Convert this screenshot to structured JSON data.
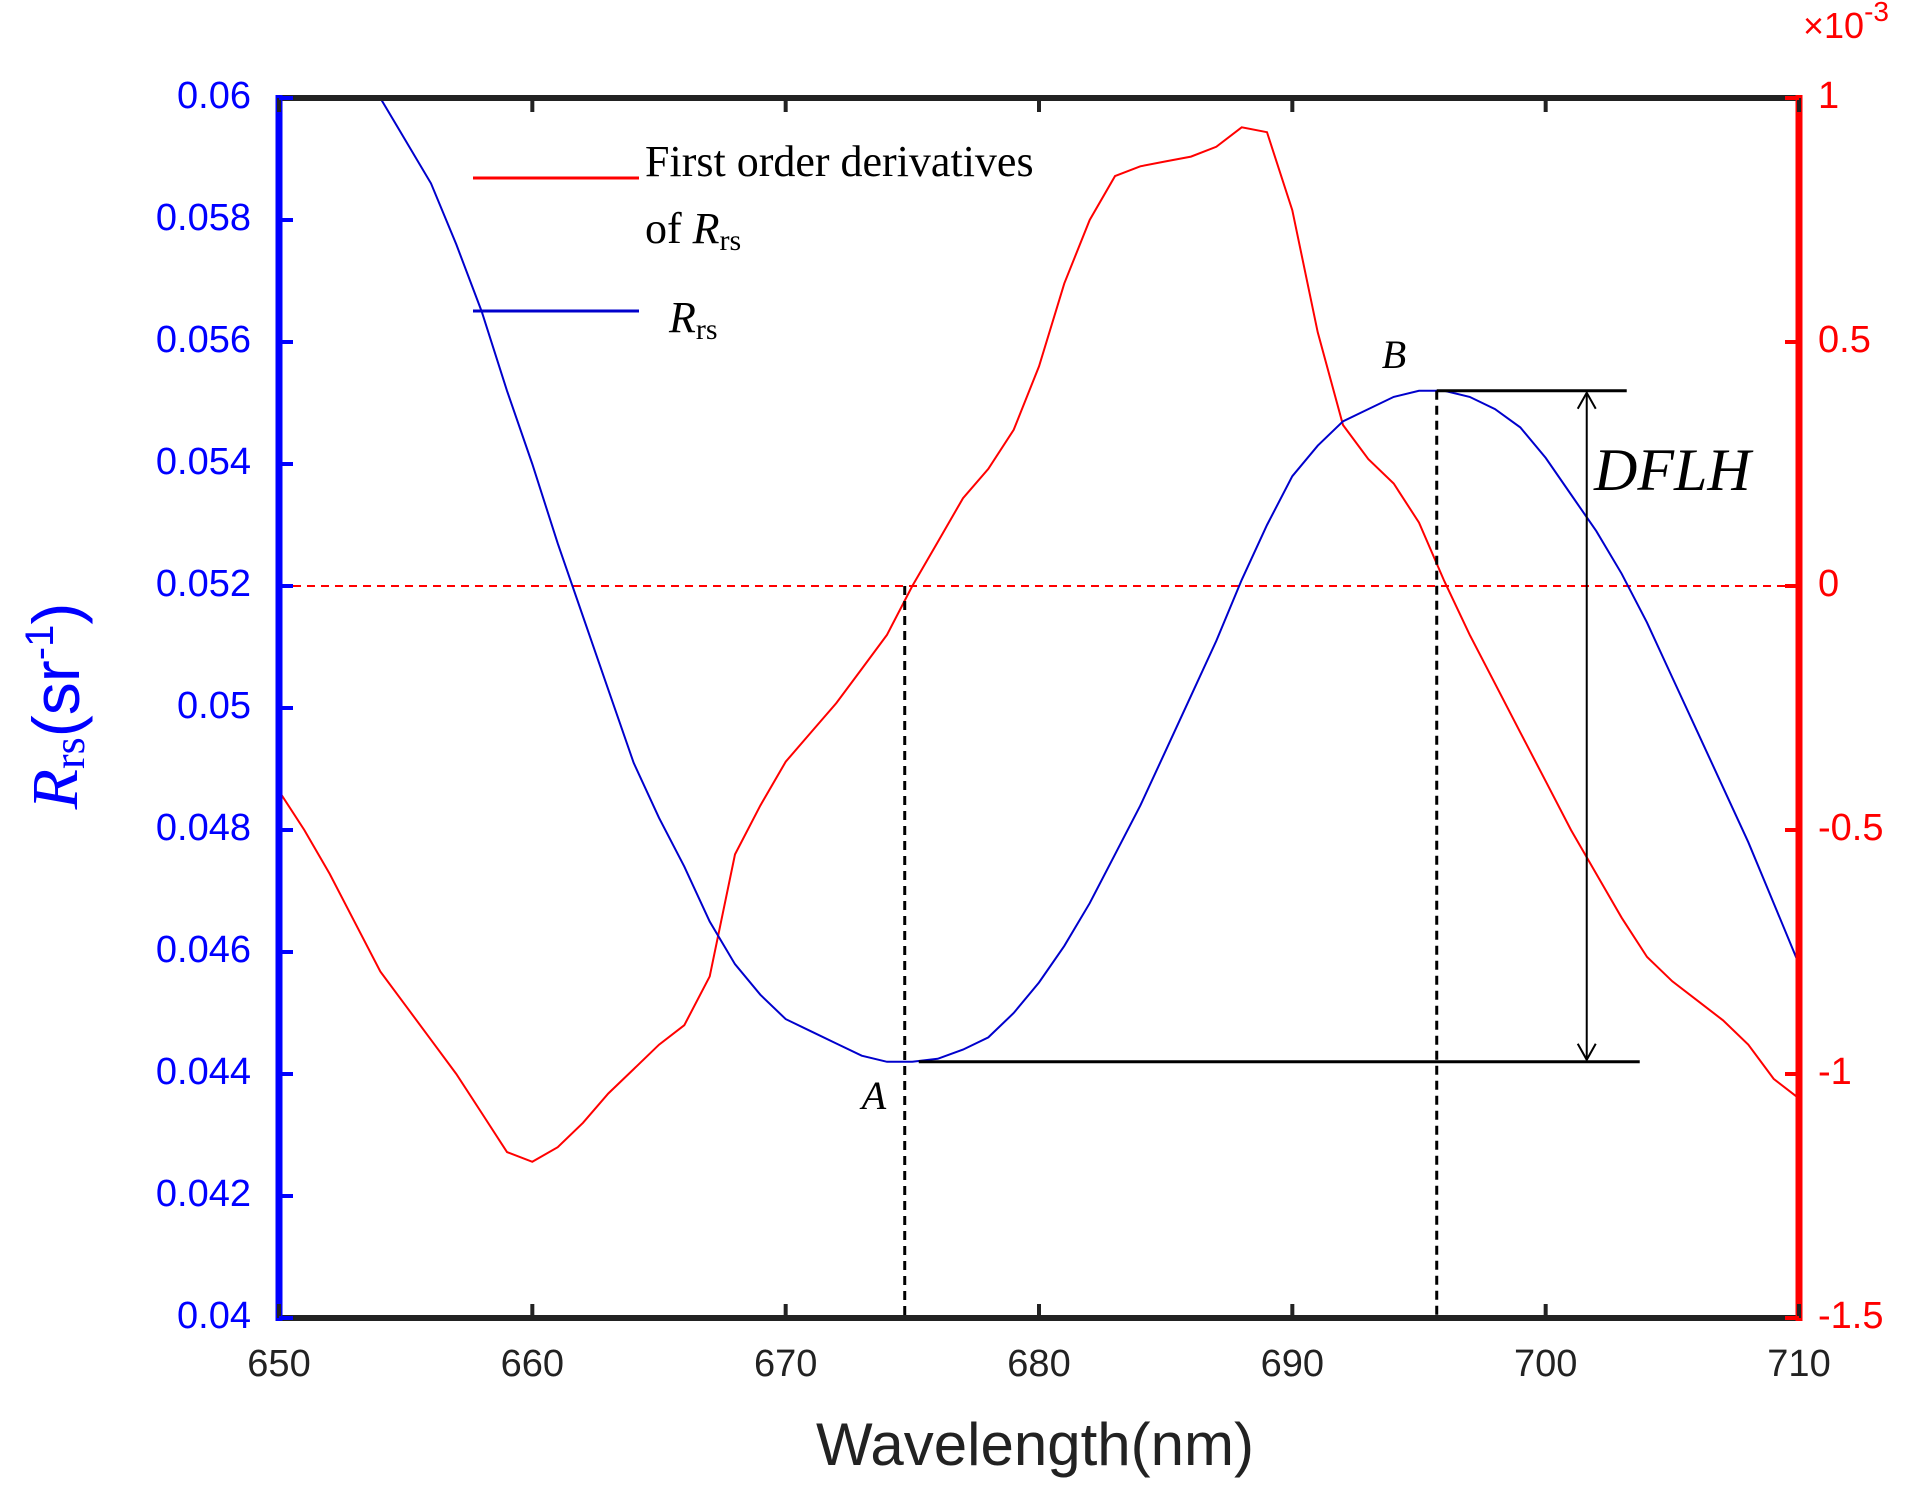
{
  "chart_data": {
    "type": "line",
    "xlabel": "Wavelength(nm)",
    "ylabel": [
      "R",
      "rs",
      "(sr",
      "-1",
      ")"
    ],
    "y2_exponent": [
      "×10",
      "-3"
    ],
    "x": [
      650,
      651,
      652,
      653,
      654,
      655,
      656,
      657,
      658,
      659,
      660,
      661,
      662,
      663,
      664,
      665,
      666,
      667,
      668,
      669,
      670,
      671,
      672,
      673,
      674,
      675,
      676,
      677,
      678,
      679,
      680,
      681,
      682,
      683,
      684,
      685,
      686,
      687,
      688,
      689,
      690,
      691,
      692,
      693,
      694,
      695,
      696,
      697,
      698,
      699,
      700,
      701,
      702,
      703,
      704,
      705,
      706,
      707,
      708,
      709,
      710
    ],
    "series": [
      {
        "name": [
          "First order derivatives",
          "of ",
          "R",
          "rs"
        ],
        "color": "#ff0000",
        "axis": "y2",
        "values": [
          -0.42,
          -0.5,
          -0.59,
          -0.69,
          -0.79,
          -0.86,
          -0.93,
          -1.0,
          -1.08,
          -1.16,
          -1.18,
          -1.15,
          -1.1,
          -1.04,
          -0.99,
          -0.94,
          -0.9,
          -0.8,
          -0.55,
          -0.45,
          -0.36,
          -0.3,
          -0.24,
          -0.17,
          -0.1,
          0.0,
          0.09,
          0.18,
          0.24,
          0.32,
          0.45,
          0.62,
          0.75,
          0.84,
          0.86,
          0.87,
          0.88,
          0.9,
          0.94,
          0.93,
          0.77,
          0.52,
          0.33,
          0.26,
          0.21,
          0.13,
          0.01,
          -0.1,
          -0.2,
          -0.3,
          -0.4,
          -0.5,
          -0.59,
          -0.68,
          -0.76,
          -0.81,
          -0.85,
          -0.89,
          -0.94,
          -1.01,
          -1.05
        ]
      },
      {
        "name": [
          "R",
          "rs"
        ],
        "color": "#0000cc",
        "axis": "y",
        "values": [
          null,
          null,
          null,
          null,
          0.06,
          0.0593,
          0.0586,
          0.0576,
          0.0565,
          0.0552,
          0.054,
          0.0527,
          0.0515,
          0.0503,
          0.0491,
          0.0482,
          0.0474,
          0.0465,
          0.0458,
          0.0453,
          0.0449,
          0.0447,
          0.0445,
          0.0443,
          0.0442,
          0.0442,
          0.04425,
          0.0444,
          0.0446,
          0.045,
          0.0455,
          0.0461,
          0.0468,
          0.0476,
          0.0484,
          0.0493,
          0.0502,
          0.0511,
          0.0521,
          0.053,
          0.0538,
          0.0543,
          0.0547,
          0.0549,
          0.0551,
          0.0552,
          0.0552,
          0.0551,
          0.0549,
          0.0546,
          0.0541,
          0.0535,
          0.0529,
          0.0522,
          0.0514,
          0.0505,
          0.0496,
          0.0487,
          0.0478,
          0.0468,
          0.0458
        ]
      }
    ],
    "xlim": [
      650,
      710
    ],
    "xticks": [
      650,
      660,
      670,
      680,
      690,
      700,
      710
    ],
    "ylim": [
      0.04,
      0.06
    ],
    "yticks": [
      0.04,
      0.042,
      0.044,
      0.046,
      0.048,
      0.05,
      0.052,
      0.054,
      0.056,
      0.058,
      0.06
    ],
    "y2lim": [
      -1.5,
      1
    ],
    "y2ticks": [
      -1.5,
      -1,
      -0.5,
      0,
      0.5,
      1
    ],
    "y_axis_color": "#0000ff",
    "y2_axis_color": "#ff0000",
    "reference_line": {
      "axis": "y2",
      "value": 0,
      "color": "#ff0000"
    },
    "points": [
      {
        "label": "A",
        "x": 674.7,
        "y": 0.0442
      },
      {
        "label": "B",
        "x": 695.7,
        "y": 0.0552
      }
    ],
    "annotation": "DFLH",
    "legend": "upper-left"
  }
}
